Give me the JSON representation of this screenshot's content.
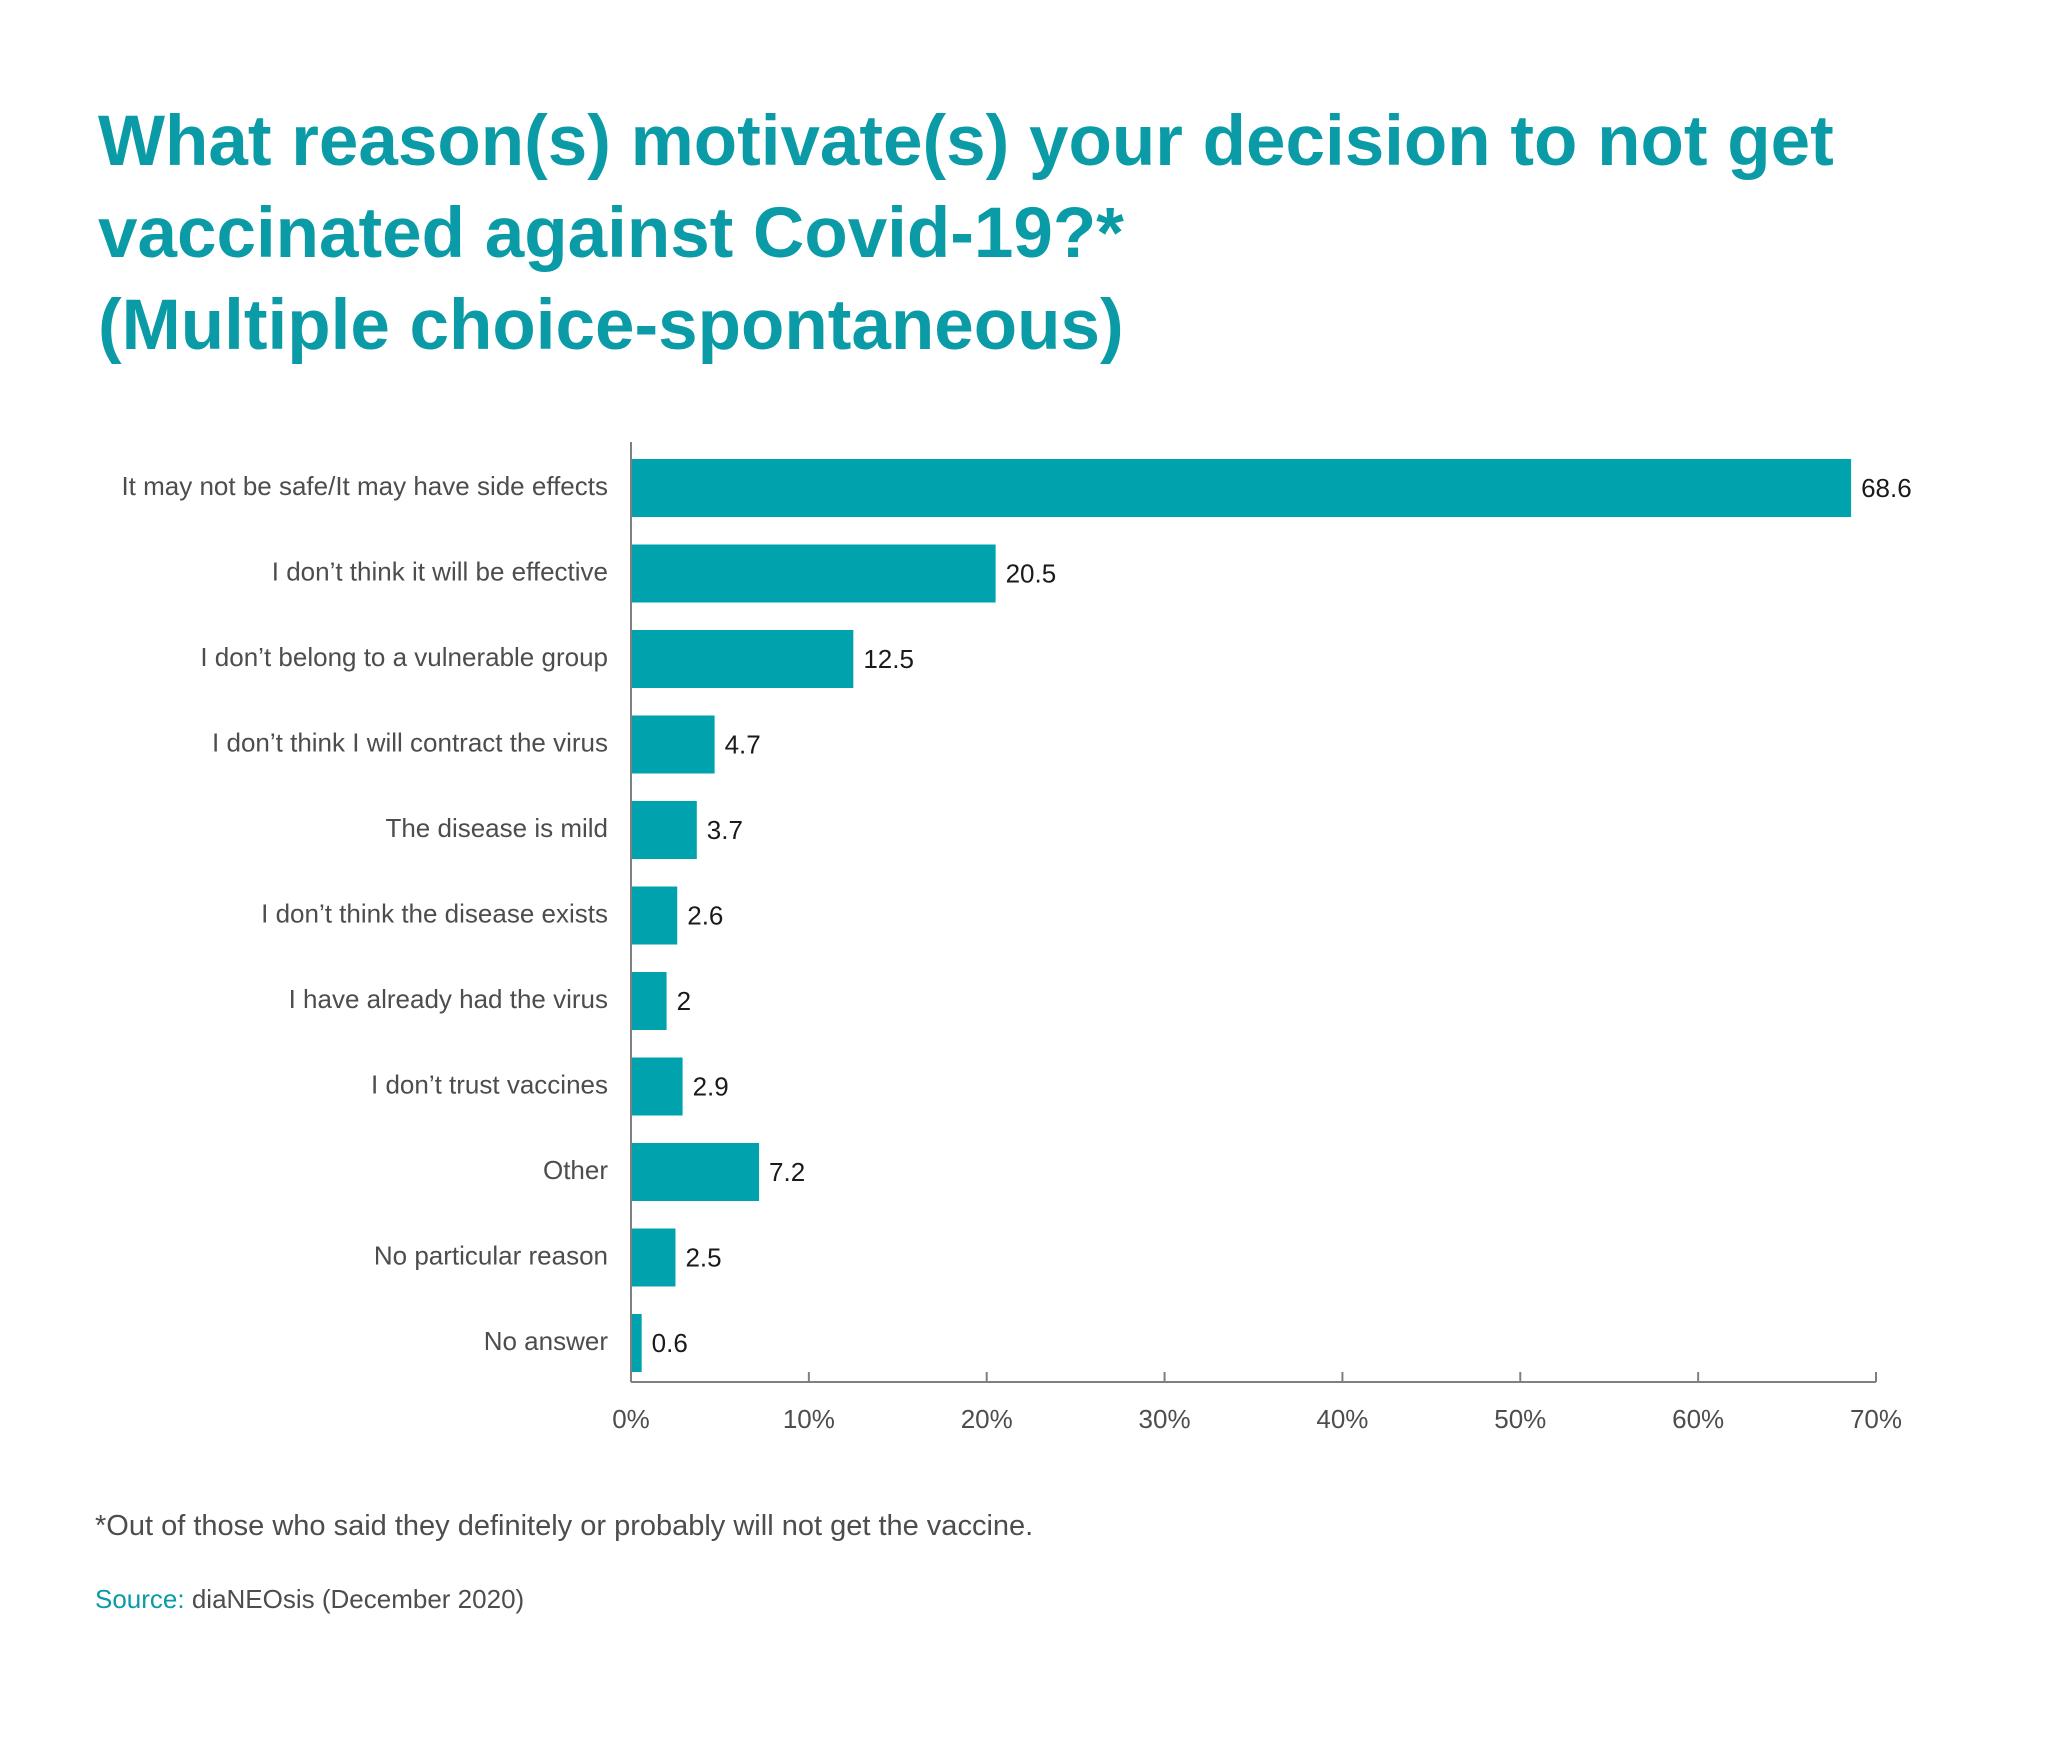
{
  "colors": {
    "accent": "#0a9ba7",
    "bar": "#00a3ad",
    "text": "#4d4d4d",
    "axis": "#808080"
  },
  "chart_data": {
    "type": "bar",
    "orientation": "horizontal",
    "title_lines": [
      "What reason(s) motivate(s) your decision to not get",
      "vaccinated against Covid-19?*",
      "(Multiple choice-spontaneous)"
    ],
    "categories": [
      "It may not be safe/It may have side effects",
      "I don’t think it will be effective",
      "I don’t belong to a vulnerable group",
      "I don’t think I will contract the virus",
      "The disease is mild",
      "I don’t think the disease exists",
      "I have already had the virus",
      "I don’t trust vaccines",
      "Other",
      "No particular reason",
      "No answer"
    ],
    "values": [
      68.6,
      20.5,
      12.5,
      4.7,
      3.7,
      2.6,
      2,
      2.9,
      7.2,
      2.5,
      0.6
    ],
    "value_labels": [
      "68.6",
      "20.5",
      "12.5",
      "4.7",
      "3.7",
      "2.6",
      "2",
      "2.9",
      "7.2",
      "2.5",
      "0.6"
    ],
    "xlim": [
      0,
      70
    ],
    "xticks": [
      0,
      10,
      20,
      30,
      40,
      50,
      60,
      70
    ],
    "xtick_labels": [
      "0%",
      "10%",
      "20%",
      "30%",
      "40%",
      "50%",
      "60%",
      "70%"
    ],
    "xlabel": "",
    "ylabel": "",
    "grid": false,
    "legend": "none"
  },
  "footnote": "*Out of those who said they definitely or probably will not get the vaccine.",
  "source": {
    "label": "Source:",
    "text": " diaNEOsis (December 2020)"
  }
}
